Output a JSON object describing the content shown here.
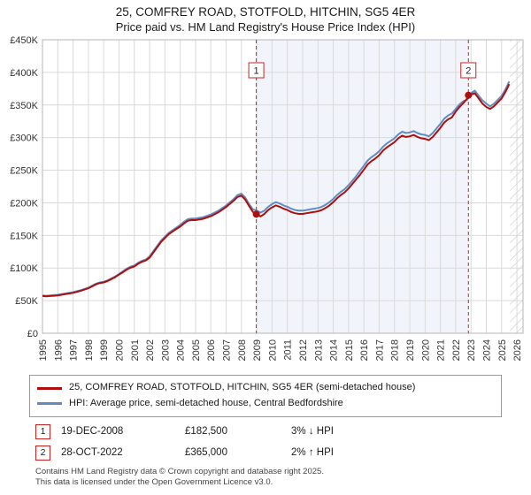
{
  "header": {
    "title": "25, COMFREY ROAD, STOTFOLD, HITCHIN, SG5 4ER",
    "subtitle": "Price paid vs. HM Land Registry's House Price Index (HPI)"
  },
  "chart_data": {
    "type": "line",
    "x_start": 1995,
    "x_step": 0.25,
    "xlim": [
      1995,
      2026.4
    ],
    "ylim": [
      0,
      450
    ],
    "y_unit": "£K",
    "yticks": [
      0,
      50,
      100,
      150,
      200,
      250,
      300,
      350,
      400,
      450
    ],
    "ytick_labels": [
      "£0",
      "£50K",
      "£100K",
      "£150K",
      "£200K",
      "£250K",
      "£300K",
      "£350K",
      "£400K",
      "£450K"
    ],
    "xticks": [
      1995,
      1996,
      1997,
      1998,
      1999,
      2000,
      2001,
      2002,
      2003,
      2004,
      2005,
      2006,
      2007,
      2008,
      2009,
      2010,
      2011,
      2012,
      2013,
      2014,
      2015,
      2016,
      2017,
      2018,
      2019,
      2020,
      2021,
      2022,
      2023,
      2024,
      2025,
      2026
    ],
    "series": [
      {
        "name": "25, COMFREY ROAD, STOTFOLD, HITCHIN, SG5 4ER (semi-detached house)",
        "color": "#b00d0d",
        "width": 2,
        "values": [
          57,
          56.5,
          57,
          57.5,
          58,
          59,
          60,
          61,
          62,
          63.5,
          65,
          67,
          69,
          72,
          75,
          77,
          78,
          80,
          83,
          86,
          90,
          93.5,
          97.5,
          100.5,
          102.5,
          106.5,
          109.5,
          111.5,
          116,
          124,
          132,
          140,
          146,
          152,
          156,
          160,
          163.5,
          168.5,
          172.5,
          173.5,
          173.5,
          174.5,
          175.5,
          177.5,
          179.5,
          182.5,
          185.5,
          189.5,
          193.5,
          198.5,
          203.5,
          209,
          211,
          205,
          195,
          186,
          182.5,
          179,
          183,
          189,
          193,
          196,
          194,
          191,
          189,
          186,
          184,
          183,
          183,
          184,
          185,
          186,
          187,
          189,
          192,
          196,
          201,
          207,
          212,
          216,
          222,
          229,
          236,
          243,
          251,
          259,
          264,
          268,
          273,
          280,
          285,
          289,
          293,
          299,
          303,
          301,
          302,
          304,
          301,
          299,
          298,
          296,
          301,
          308,
          315,
          323,
          328,
          331,
          340,
          347,
          353,
          360,
          366,
          368,
          360,
          352,
          347,
          344,
          348,
          354,
          360,
          370,
          382
        ]
      },
      {
        "name": "HPI: Average price, semi-detached house, Central Bedfordshire",
        "color": "#5f8dc3",
        "width": 2,
        "values": [
          58,
          57.5,
          58,
          58.5,
          59,
          60,
          61,
          62,
          63,
          64.5,
          66,
          68,
          70,
          73,
          76,
          78,
          79,
          81,
          84,
          87,
          91,
          95,
          99,
          102,
          104,
          108,
          111,
          113,
          118,
          126,
          134,
          142,
          148,
          154,
          158,
          162,
          166,
          171,
          175,
          176,
          176,
          177,
          178,
          180,
          182,
          185,
          188,
          192,
          196,
          201,
          206,
          212,
          214,
          208,
          198,
          190,
          188,
          185,
          188,
          194,
          198,
          201,
          199,
          196,
          194,
          191,
          189,
          188,
          188,
          189,
          190,
          191,
          192,
          194,
          197,
          201,
          206,
          212,
          217,
          221,
          227,
          234,
          241,
          249,
          257,
          265,
          270,
          274,
          279,
          286,
          291,
          295,
          299,
          305,
          309,
          307,
          308,
          310,
          307,
          305,
          304,
          302,
          307,
          314,
          321,
          329,
          334,
          337,
          344,
          351,
          356,
          358,
          368,
          372,
          364,
          357,
          352,
          348,
          352,
          358,
          364,
          374,
          386
        ]
      }
    ],
    "sales": [
      {
        "label": "1",
        "x": 2008.97,
        "y": 182.5,
        "date": "19-DEC-2008",
        "price": "£182,500",
        "hpi_delta": "3% ↓ HPI"
      },
      {
        "label": "2",
        "x": 2022.83,
        "y": 365,
        "date": "28-OCT-2022",
        "price": "£365,000",
        "hpi_delta": "2% ↑ HPI"
      }
    ],
    "hatch_from": 2025.55,
    "colors": {
      "grid": "#d9d9d9",
      "border": "#b5b5b5",
      "shade": "#e9eef8",
      "hatch": "#c8c8c8",
      "sale": "#cc2222",
      "tick_text": "#333333"
    },
    "legend_position": "bottom",
    "grid": true
  },
  "legend": [
    {
      "label": "25, COMFREY ROAD, STOTFOLD, HITCHIN, SG5 4ER (semi-detached house)",
      "color": "#b00d0d"
    },
    {
      "label": "HPI: Average price, semi-detached house, Central Bedfordshire",
      "color": "#5f8dc3"
    }
  ],
  "footer": {
    "line1": "Contains HM Land Registry data © Crown copyright and database right 2025.",
    "line2": "This data is licensed under the Open Government Licence v3.0."
  }
}
